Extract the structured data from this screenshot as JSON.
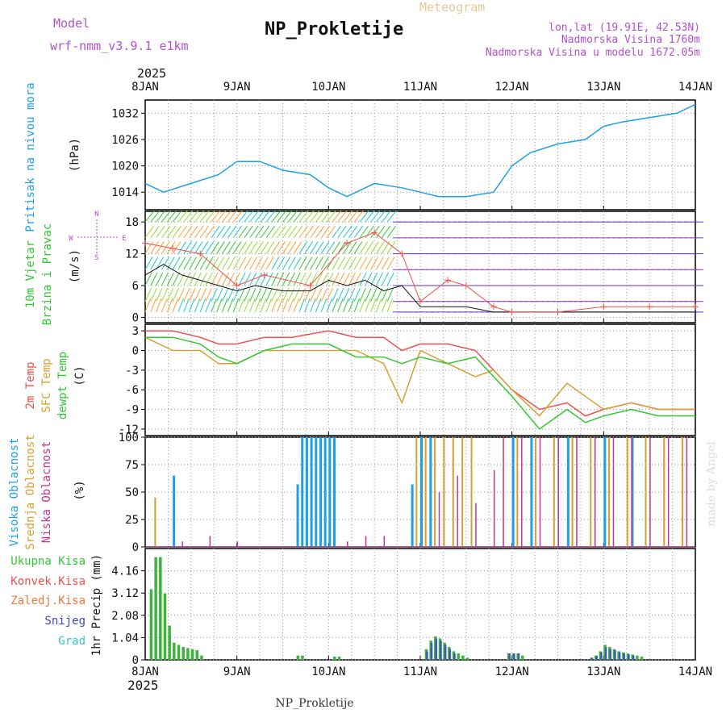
{
  "header": {
    "model_label": "Model",
    "model_value": "wrf-nmm_v3.9.1 e1km",
    "meteogram_label": "Meteogram",
    "station": "NP_Prokletije",
    "lonlat": "lon,lat (19.91E, 42.53N)",
    "elevation": "Nadmorska Visina 1760m",
    "model_elevation": "Nadmorska Visina u modelu 1672.05m",
    "bottom_station": "NP_Prokletije",
    "credit": "made by Angel"
  },
  "colors": {
    "pressure": "#1ea0e6",
    "temp2m": "#f0504b",
    "sfc": "#d7a032",
    "dewpt": "#32c832",
    "high_cloud": "#1ea0e6",
    "mid_cloud": "#d7a032",
    "low_cloud": "#c83296",
    "precip": "#3cb43c",
    "snow": "#3c46c8",
    "purple_text": "#b450d2"
  },
  "chart_data": [
    {
      "type": "line",
      "id": "pressure",
      "ylabel_lines": [
        "Pritisak na nivou mora",
        "(hPa)"
      ],
      "year_label": "2025",
      "x_ticks": [
        "8JAN",
        "9JAN",
        "10JAN",
        "11JAN",
        "12JAN",
        "13JAN",
        "14JAN"
      ],
      "ylim": [
        1010,
        1035
      ],
      "yticks": [
        1014,
        1020,
        1026,
        1032
      ],
      "grid": true,
      "series": [
        {
          "x": [
            0,
            0.2,
            0.5,
            0.8,
            1.0,
            1.25,
            1.5,
            1.8,
            2.0,
            2.2,
            2.5,
            2.8,
            3.0,
            3.2,
            3.5,
            3.8,
            4.0,
            4.2,
            4.5,
            4.8,
            5.0,
            5.2,
            5.5,
            5.8,
            6.0
          ],
          "y": [
            1016,
            1014,
            1016,
            1018,
            1021,
            1021,
            1019,
            1018,
            1015,
            1013,
            1016,
            1015,
            1014,
            1013,
            1013,
            1014,
            1020,
            1023,
            1025,
            1026,
            1029,
            1030,
            1031,
            1032,
            1034
          ]
        }
      ]
    },
    {
      "type": "line",
      "id": "wind",
      "ylabel_lines": [
        "10m Vjetar",
        "Brzina i Pravac",
        "(m/s)"
      ],
      "compass": {
        "n": "N",
        "s": "S",
        "w": "W",
        "e": "E"
      },
      "ylim": [
        -1,
        20
      ],
      "yticks": [
        0,
        6,
        12,
        18
      ],
      "grid": true,
      "series": [
        {
          "name": "speed",
          "x": [
            0,
            0.2,
            0.4,
            0.6,
            0.8,
            1.0,
            1.2,
            1.5,
            1.8,
            2.0,
            2.2,
            2.4,
            2.6,
            2.8,
            3.0,
            3.2,
            3.5,
            3.8,
            4.0,
            4.3,
            4.6,
            5.0,
            5.3,
            5.6,
            6.0
          ],
          "y": [
            8,
            10,
            8,
            7,
            6,
            5,
            6,
            5,
            5,
            7,
            6,
            7,
            5,
            6,
            2,
            2,
            2,
            1,
            1,
            1,
            1,
            1,
            1,
            1,
            1
          ]
        },
        {
          "name": "gust",
          "x": [
            0,
            0.3,
            0.6,
            1.0,
            1.3,
            1.8,
            2.2,
            2.5,
            2.8,
            3.0,
            3.3,
            3.5,
            3.8,
            4.0,
            4.5,
            5.0,
            5.5,
            6.0
          ],
          "y": [
            14,
            13,
            12,
            6,
            8,
            6,
            14,
            16,
            12,
            3,
            7,
            6,
            2,
            1,
            1,
            2,
            2,
            2
          ]
        }
      ]
    },
    {
      "type": "line",
      "id": "temperature",
      "ylabel_lines": [
        "2m Temp",
        "SFC Temp",
        "dewpt Temp",
        "(C)"
      ],
      "ylim": [
        -13,
        4
      ],
      "yticks": [
        3,
        0,
        -3,
        -6,
        -9,
        -12
      ],
      "grid": true,
      "series": [
        {
          "name": "2m Temp",
          "x": [
            0,
            0.3,
            0.6,
            0.8,
            1.0,
            1.3,
            1.6,
            2.0,
            2.3,
            2.6,
            2.8,
            3.0,
            3.3,
            3.6,
            3.8,
            4.0,
            4.3,
            4.6,
            4.8,
            5.0,
            5.3,
            5.6,
            6.0
          ],
          "y": [
            3,
            3,
            2,
            1,
            1,
            2,
            2,
            3,
            2,
            2,
            0,
            1,
            1,
            0,
            -3,
            -6,
            -9,
            -8,
            -10,
            -9,
            -8,
            -9,
            -9
          ]
        },
        {
          "name": "SFC Temp",
          "x": [
            0,
            0.3,
            0.6,
            0.8,
            1.0,
            1.3,
            1.6,
            2.0,
            2.3,
            2.6,
            2.8,
            3.0,
            3.3,
            3.6,
            3.8,
            4.0,
            4.3,
            4.6,
            4.8,
            5.0,
            5.3,
            5.6,
            6.0
          ],
          "y": [
            2,
            0,
            0,
            -2,
            -2,
            0,
            0,
            0,
            0,
            -2,
            -8,
            0,
            -2,
            -4,
            -3,
            -6,
            -10,
            -5,
            -7,
            -9,
            -8,
            -9,
            -9
          ]
        },
        {
          "name": "dewpt Temp",
          "x": [
            0,
            0.3,
            0.6,
            0.8,
            1.0,
            1.3,
            1.6,
            2.0,
            2.3,
            2.6,
            2.8,
            3.0,
            3.3,
            3.6,
            3.8,
            4.0,
            4.3,
            4.6,
            4.8,
            5.0,
            5.3,
            5.6,
            6.0
          ],
          "y": [
            2,
            2,
            1,
            -1,
            -2,
            0,
            1,
            1,
            -1,
            -1,
            -2,
            -1,
            -2,
            -1,
            -4,
            -7,
            -12,
            -9,
            -11,
            -10,
            -9,
            -10,
            -10
          ]
        }
      ]
    },
    {
      "type": "bar",
      "id": "cloud",
      "ylabel_lines": [
        "Visoka Oblacnost",
        "Srednja Oblacnost",
        "Niska Oblacnost",
        "(%)"
      ],
      "ylim": [
        0,
        100
      ],
      "yticks": [
        0,
        25,
        50,
        75,
        100
      ],
      "grid": true,
      "series": [
        {
          "name": "Visoka Oblacnost",
          "x": [
            0.3,
            1.65,
            1.7,
            1.75,
            1.8,
            1.85,
            1.9,
            1.95,
            2.0,
            2.05,
            2.9,
            3.0,
            3.1,
            4.0,
            4.2,
            4.6,
            5.0,
            5.3
          ],
          "values": [
            65,
            57,
            100,
            100,
            100,
            100,
            100,
            100,
            100,
            100,
            57,
            100,
            100,
            100,
            100,
            100,
            100,
            100
          ]
        },
        {
          "name": "Srednja Oblacnost",
          "x": [
            0.1,
            2.95,
            3.05,
            3.15,
            3.25,
            3.35,
            3.45,
            3.55,
            4.05,
            4.25,
            4.45,
            4.65,
            4.85,
            5.05,
            5.25,
            5.45,
            5.65,
            5.85
          ],
          "values": [
            45,
            100,
            100,
            100,
            100,
            100,
            100,
            100,
            100,
            100,
            100,
            100,
            100,
            100,
            100,
            100,
            100,
            100
          ]
        },
        {
          "name": "Niska Oblacnost",
          "x": [
            0.4,
            0.7,
            1.0,
            2.2,
            2.4,
            2.6,
            3.2,
            3.4,
            3.6,
            3.8,
            3.9,
            4.1,
            4.3,
            4.5,
            4.7,
            4.9,
            5.1,
            5.3,
            5.5,
            5.7,
            5.9
          ],
          "values": [
            5,
            10,
            5,
            5,
            10,
            10,
            50,
            65,
            40,
            70,
            100,
            100,
            100,
            100,
            100,
            100,
            100,
            100,
            100,
            100,
            100
          ]
        }
      ]
    },
    {
      "type": "bar",
      "id": "precip",
      "legend": [
        "Ukupna Kisa",
        "Konvek.Kisa",
        "Zaledj.Kisa",
        "Snijeg",
        "Grad"
      ],
      "ylabel_lines": [
        "1hr Precip (mm)"
      ],
      "year_label": "2025",
      "x_ticks": [
        "8JAN",
        "9JAN",
        "10JAN",
        "11JAN",
        "12JAN",
        "13JAN",
        "14JAN"
      ],
      "ylim": [
        0,
        5.2
      ],
      "yticks": [
        0,
        1.04,
        2.08,
        3.12,
        4.16
      ],
      "grid": true,
      "series": [
        {
          "name": "Ukupna Kisa",
          "x": [
            0.05,
            0.1,
            0.15,
            0.2,
            0.25,
            0.3,
            0.35,
            0.4,
            0.45,
            0.5,
            0.55,
            0.6,
            1.65,
            1.7,
            2.05,
            2.1,
            3.05,
            3.1,
            3.15,
            3.2,
            3.25,
            3.3,
            3.35,
            3.4,
            3.45,
            3.5,
            3.95,
            4.0,
            4.05,
            4.1,
            4.85,
            4.9,
            4.95,
            5.0,
            5.05,
            5.1,
            5.15,
            5.2,
            5.25,
            5.3,
            5.35,
            5.4
          ],
          "values": [
            3.3,
            4.8,
            4.8,
            3.1,
            1.6,
            0.8,
            0.7,
            0.6,
            0.55,
            0.5,
            0.45,
            0.2,
            0.2,
            0.2,
            0.15,
            0.15,
            0.5,
            0.9,
            1.1,
            1.0,
            0.8,
            0.6,
            0.4,
            0.3,
            0.2,
            0.1,
            0.3,
            0.3,
            0.3,
            0.2,
            0.1,
            0.2,
            0.4,
            0.7,
            0.6,
            0.5,
            0.4,
            0.35,
            0.3,
            0.25,
            0.2,
            0.15
          ]
        },
        {
          "name": "Snijeg",
          "x": [
            3.05,
            3.1,
            3.15,
            3.2,
            3.25,
            3.3,
            3.35,
            3.95,
            4.0,
            4.05,
            4.85,
            4.9,
            4.95,
            5.0,
            5.05,
            5.1,
            5.15,
            5.2,
            5.25,
            5.3
          ],
          "values": [
            0.4,
            0.8,
            1.0,
            0.9,
            0.7,
            0.5,
            0.3,
            0.3,
            0.3,
            0.3,
            0.1,
            0.2,
            0.35,
            0.6,
            0.5,
            0.45,
            0.35,
            0.3,
            0.25,
            0.2
          ]
        }
      ]
    }
  ]
}
